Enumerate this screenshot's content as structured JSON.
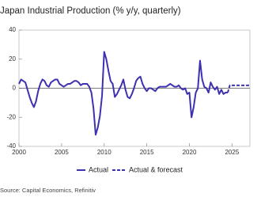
{
  "chart_data": {
    "type": "line",
    "title": "Japan Industrial Production (% y/y, quarterly)",
    "source": "Source: Capital Economics, Refinitiv",
    "x": [
      2000,
      2000.25,
      2000.5,
      2000.75,
      2001,
      2001.25,
      2001.5,
      2001.75,
      2002,
      2002.25,
      2002.5,
      2002.75,
      2003,
      2003.25,
      2003.5,
      2003.75,
      2004,
      2004.25,
      2004.5,
      2004.75,
      2005,
      2005.25,
      2005.5,
      2005.75,
      2006,
      2006.25,
      2006.5,
      2006.75,
      2007,
      2007.25,
      2007.5,
      2007.75,
      2008,
      2008.25,
      2008.5,
      2008.75,
      2009,
      2009.25,
      2009.5,
      2009.75,
      2010,
      2010.25,
      2010.5,
      2010.75,
      2011,
      2011.25,
      2011.5,
      2011.75,
      2012,
      2012.25,
      2012.5,
      2012.75,
      2013,
      2013.25,
      2013.5,
      2013.75,
      2014,
      2014.25,
      2014.5,
      2014.75,
      2015,
      2015.25,
      2015.5,
      2015.75,
      2016,
      2016.25,
      2016.5,
      2016.75,
      2017,
      2017.25,
      2017.5,
      2017.75,
      2018,
      2018.25,
      2018.5,
      2018.75,
      2019,
      2019.25,
      2019.5,
      2019.75,
      2020,
      2020.25,
      2020.5,
      2020.75,
      2021,
      2021.25,
      2021.5,
      2021.75,
      2022,
      2022.25,
      2022.5,
      2022.75,
      2023,
      2023.25,
      2023.5,
      2023.75,
      2024,
      2024.25,
      2024.5,
      2024.75,
      2025,
      2025.25,
      2025.5,
      2025.75,
      2026,
      2026.25,
      2026.5,
      2026.75,
      2027
    ],
    "series": [
      {
        "name": "Actual",
        "color": "#3d31b0",
        "dash": false,
        "values": [
          3,
          6,
          5,
          4,
          -1,
          -6,
          -10,
          -13,
          -9,
          -2,
          3,
          6,
          5,
          2,
          1,
          4,
          5,
          6,
          6,
          3,
          2,
          1,
          2,
          3,
          3,
          4,
          5,
          5,
          4,
          2,
          3,
          3,
          3,
          1,
          -3,
          -14,
          -32,
          -27,
          -19,
          -5,
          25,
          20,
          12,
          5,
          3,
          -6,
          -4,
          -1,
          2,
          6,
          -1,
          -6,
          -7,
          -4,
          0,
          5,
          7,
          8,
          3,
          0,
          -2,
          0,
          0,
          -1,
          -2,
          0,
          1,
          1,
          1,
          1,
          2,
          3,
          2,
          1,
          1,
          2,
          0,
          -1,
          0,
          -4,
          -3,
          -20,
          -13,
          -3,
          0,
          19,
          6,
          1,
          0,
          -3,
          4,
          1,
          -1,
          1,
          -4,
          -1,
          -4,
          -3,
          -3,
          null,
          null,
          null,
          null,
          null,
          null,
          null,
          null,
          null,
          null
        ]
      },
      {
        "name": "Actual & forecast",
        "color": "#3d31b0",
        "dash": true,
        "values": [
          null,
          null,
          null,
          null,
          null,
          null,
          null,
          null,
          null,
          null,
          null,
          null,
          null,
          null,
          null,
          null,
          null,
          null,
          null,
          null,
          null,
          null,
          null,
          null,
          null,
          null,
          null,
          null,
          null,
          null,
          null,
          null,
          null,
          null,
          null,
          null,
          null,
          null,
          null,
          null,
          null,
          null,
          null,
          null,
          null,
          null,
          null,
          null,
          null,
          null,
          null,
          null,
          null,
          null,
          null,
          null,
          null,
          null,
          null,
          null,
          null,
          null,
          null,
          null,
          null,
          null,
          null,
          null,
          null,
          null,
          null,
          null,
          null,
          null,
          null,
          null,
          null,
          null,
          null,
          null,
          null,
          null,
          null,
          null,
          null,
          null,
          null,
          null,
          null,
          null,
          null,
          null,
          null,
          null,
          null,
          null,
          null,
          null,
          -3,
          2,
          2,
          2,
          2,
          2,
          2,
          2,
          2,
          2,
          2
        ]
      }
    ],
    "xlim": [
      2000,
      2027.1
    ],
    "xticks": [
      2000,
      2005,
      2010,
      2015,
      2020,
      2025
    ],
    "ylim": [
      -40,
      40
    ],
    "yticks": [
      -40,
      -20,
      0,
      20,
      40
    ]
  }
}
